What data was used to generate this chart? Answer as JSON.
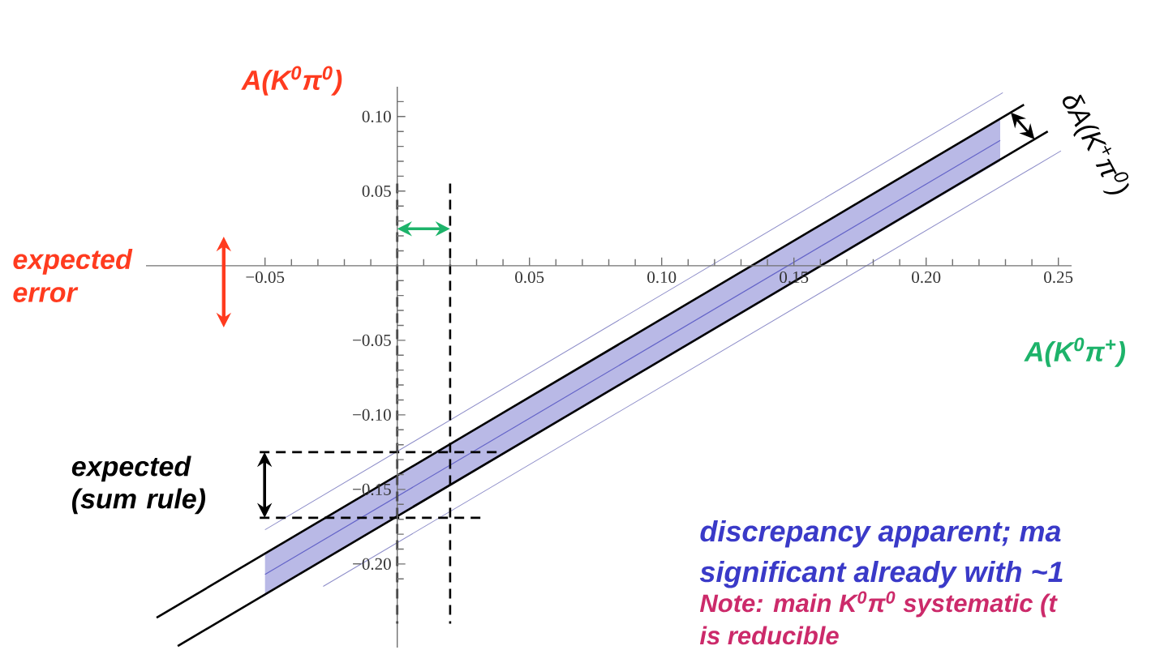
{
  "chart_data": {
    "type": "line",
    "xlabel": "A(K$^{0}$π$^{+}$)",
    "ylabel": "A(K$^{0}$π$^{0}$)",
    "xlim": [
      -0.095,
      0.255
    ],
    "ylim": [
      -0.256,
      0.12
    ],
    "xticks": [
      {
        "value": -0.05,
        "label": "−0.05"
      },
      {
        "value": 0.05,
        "label": "0.05"
      },
      {
        "value": 0.1,
        "label": "0.10"
      },
      {
        "value": 0.15,
        "label": "0.15"
      },
      {
        "value": 0.2,
        "label": "0.20"
      },
      {
        "value": 0.25,
        "label": "0.25"
      },
      {
        "value": -0.04,
        "label": null
      },
      {
        "value": -0.03,
        "label": null
      },
      {
        "value": -0.02,
        "label": null
      },
      {
        "value": -0.01,
        "label": null
      },
      {
        "value": 0.01,
        "label": null
      },
      {
        "value": 0.02,
        "label": null
      },
      {
        "value": 0.03,
        "label": null
      },
      {
        "value": 0.04,
        "label": null
      },
      {
        "value": 0.06,
        "label": null
      },
      {
        "value": 0.07,
        "label": null
      },
      {
        "value": 0.08,
        "label": null
      },
      {
        "value": 0.09,
        "label": null
      },
      {
        "value": 0.11,
        "label": null
      },
      {
        "value": 0.12,
        "label": null
      },
      {
        "value": 0.13,
        "label": null
      },
      {
        "value": 0.14,
        "label": null
      },
      {
        "value": 0.16,
        "label": null
      },
      {
        "value": 0.17,
        "label": null
      },
      {
        "value": 0.18,
        "label": null
      },
      {
        "value": 0.19,
        "label": null
      },
      {
        "value": 0.21,
        "label": null
      },
      {
        "value": 0.22,
        "label": null
      },
      {
        "value": 0.23,
        "label": null
      },
      {
        "value": 0.24,
        "label": null
      }
    ],
    "yticks": [
      {
        "value": -0.2,
        "label": "−0.20"
      },
      {
        "value": -0.15,
        "label": "−0.15"
      },
      {
        "value": -0.1,
        "label": "−0.10"
      },
      {
        "value": -0.05,
        "label": "−0.05"
      },
      {
        "value": 0.05,
        "label": "0.05"
      },
      {
        "value": 0.1,
        "label": "0.10"
      },
      {
        "value": -0.21,
        "label": null
      },
      {
        "value": -0.19,
        "label": null
      },
      {
        "value": -0.18,
        "label": null
      },
      {
        "value": -0.17,
        "label": null
      },
      {
        "value": -0.16,
        "label": null
      },
      {
        "value": -0.14,
        "label": null
      },
      {
        "value": -0.13,
        "label": null
      },
      {
        "value": -0.12,
        "label": null
      },
      {
        "value": -0.11,
        "label": null
      },
      {
        "value": -0.09,
        "label": null
      },
      {
        "value": -0.08,
        "label": null
      },
      {
        "value": -0.07,
        "label": null
      },
      {
        "value": -0.06,
        "label": null
      },
      {
        "value": -0.04,
        "label": null
      },
      {
        "value": -0.03,
        "label": null
      },
      {
        "value": -0.02,
        "label": null
      },
      {
        "value": -0.01,
        "label": null
      },
      {
        "value": 0.01,
        "label": null
      },
      {
        "value": 0.02,
        "label": null
      },
      {
        "value": 0.03,
        "label": null
      },
      {
        "value": 0.04,
        "label": null
      },
      {
        "value": 0.06,
        "label": null
      },
      {
        "value": 0.07,
        "label": null
      },
      {
        "value": 0.08,
        "label": null
      },
      {
        "value": 0.09,
        "label": null
      },
      {
        "value": 0.11,
        "label": null
      }
    ],
    "series": [
      {
        "color": "#6464c8",
        "x": [
          -0.05,
          0.228
        ],
        "values": [
          -0.207,
          0.084
        ],
        "lower": [
          -0.221,
          0.07
        ],
        "upper": [
          -0.193,
          0.099
        ]
      },
      {
        "color": "#000000",
        "x": [
          -0.091,
          0.237
        ],
        "values": [
          -0.236,
          0.108
        ]
      },
      {
        "color": "#000000",
        "x": [
          -0.083,
          0.246
        ],
        "values": [
          -0.255,
          0.09
        ]
      },
      {
        "color": "#8c8cc8",
        "x": [
          -0.05,
          0.229
        ],
        "values": [
          -0.177,
          0.116
        ]
      },
      {
        "color": "#8c8cc8",
        "x": [
          -0.028,
          0.251
        ],
        "values": [
          -0.215,
          0.077
        ]
      },
      {
        "color": "#000000",
        "x": [
          0,
          0
        ],
        "values": [
          0.055,
          -0.24
        ],
        "line_style": "dashed"
      },
      {
        "color": "#000000",
        "x": [
          0.02,
          0.02
        ],
        "values": [
          0.055,
          -0.24
        ],
        "line_style": "dashed"
      },
      {
        "color": "#000000",
        "x": [
          -0.052,
          0.038
        ],
        "values": [
          -0.125,
          -0.125
        ],
        "line_style": "dashed"
      },
      {
        "color": "#000000",
        "x": [
          -0.052,
          0.032
        ],
        "values": [
          -0.169,
          -0.169
        ],
        "line_style": "dashed"
      }
    ],
    "annotations": [
      "expected error",
      "expected (sum rule)",
      "δA(K$^{+}$π$^{0}$)",
      "discrepancy apparent; ma",
      "significant already with ~1",
      "Note: main K$^{0}$π$^{0}$ systematic (t",
      "is reducible"
    ],
    "grid": false
  }
}
